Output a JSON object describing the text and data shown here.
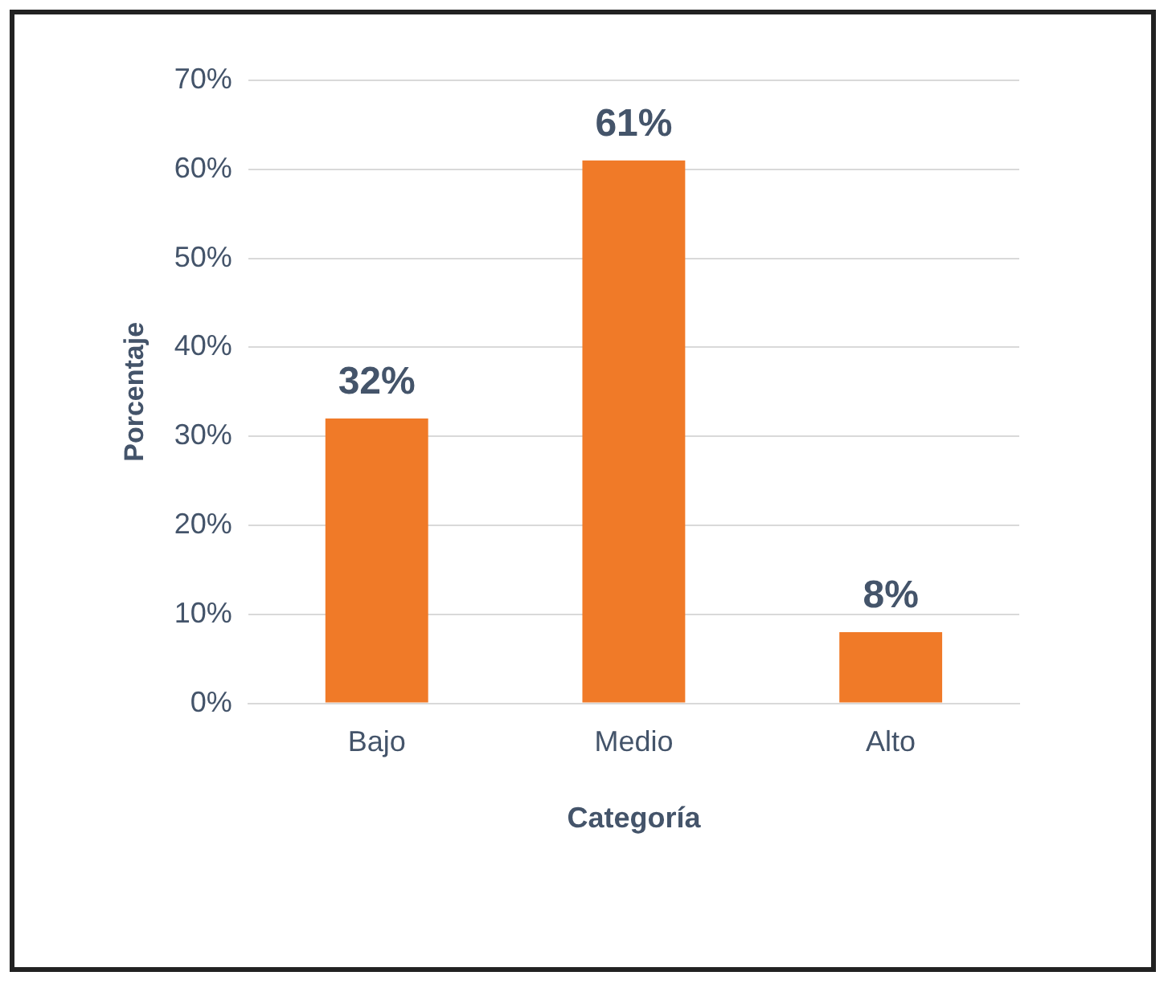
{
  "chart_data": {
    "type": "bar",
    "xlabel": "Categoría",
    "ylabel": "Porcentaje",
    "categories": [
      "Bajo",
      "Medio",
      "Alto"
    ],
    "values": [
      32,
      61,
      8
    ],
    "color": "#f07a28",
    "value_labels": [
      "32%",
      "61%",
      "8%"
    ],
    "ylim": [
      0,
      70
    ],
    "yticks": [
      {
        "value": 0,
        "label": "0%"
      },
      {
        "value": 10,
        "label": "10%"
      },
      {
        "value": 20,
        "label": "20%"
      },
      {
        "value": 30,
        "label": "30%"
      },
      {
        "value": 40,
        "label": "40%"
      },
      {
        "value": 50,
        "label": "50%"
      },
      {
        "value": 60,
        "label": "60%"
      },
      {
        "value": 70,
        "label": "70%"
      }
    ],
    "grid": "y",
    "legend": false
  }
}
